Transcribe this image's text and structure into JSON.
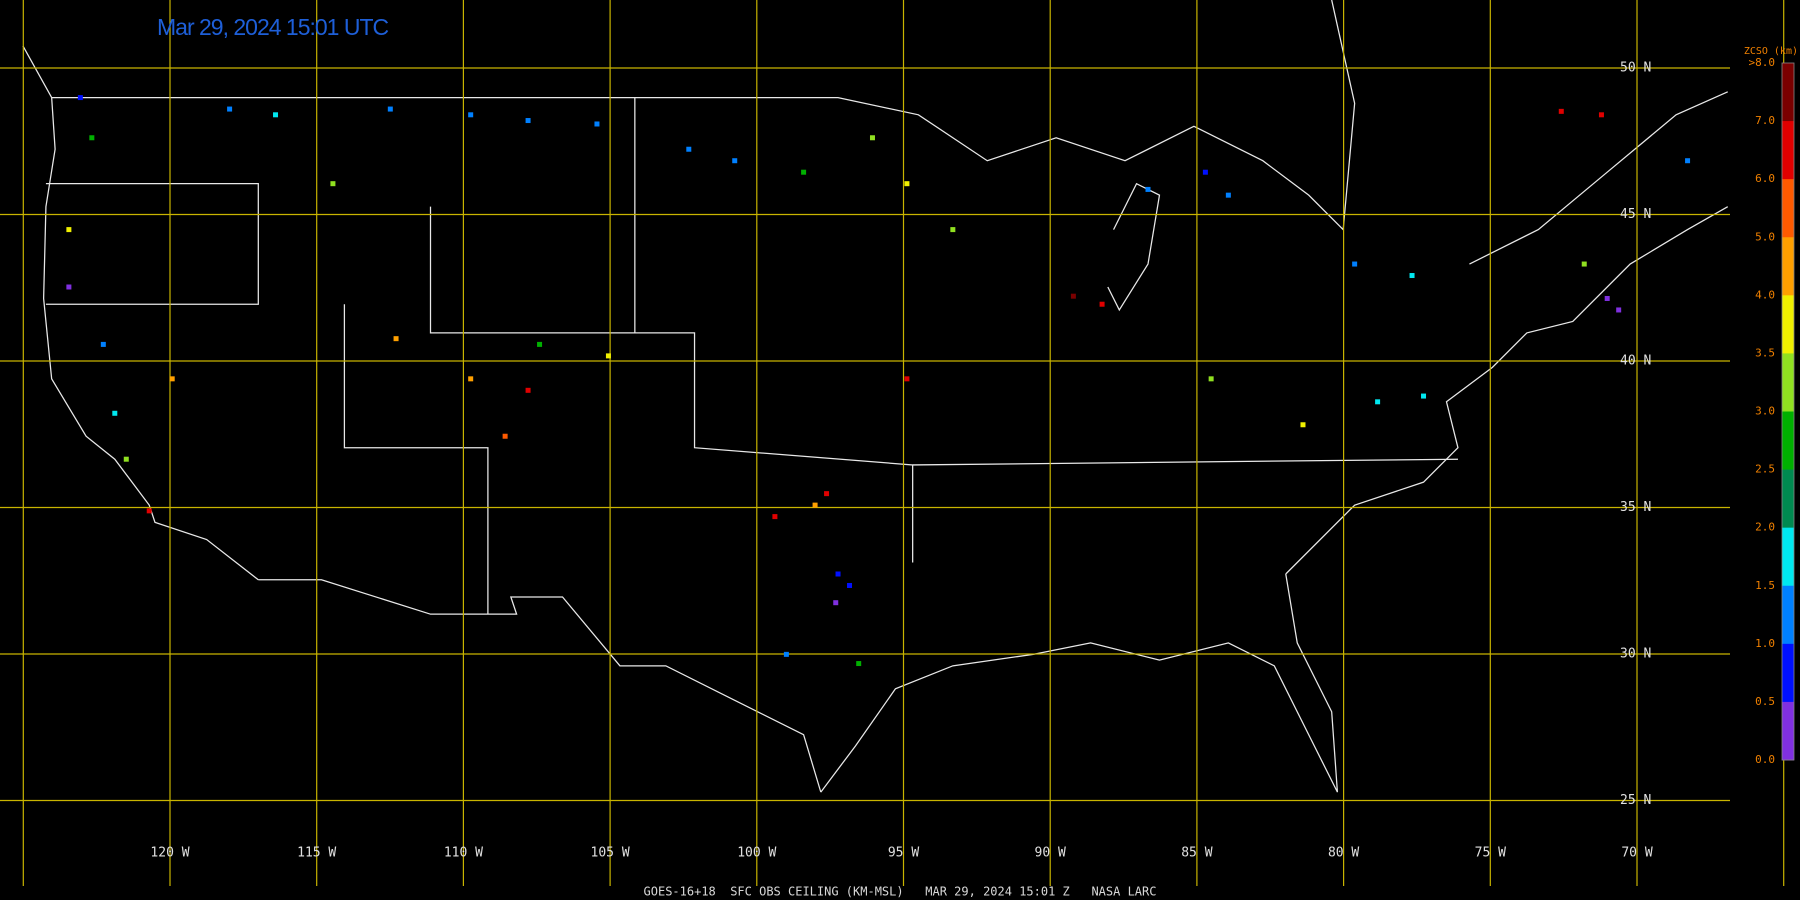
{
  "title": "Mar 29, 2024 15:01 UTC",
  "footer": "GOES-16+18  SFC OBS CEILING (KM-MSL)   MAR 29, 2024 15:01 Z   NASA LARC",
  "latitude_labels": [
    "50 N",
    "45 N",
    "40 N",
    "35 N",
    "30 N",
    "25 N"
  ],
  "longitude_labels": [
    "120 W",
    "115 W",
    "110 W",
    "105 W",
    "100 W",
    "95 W",
    "90 W",
    "85 W",
    "80 W",
    "75 W",
    "70 W"
  ],
  "legend": {
    "title": "ZCSO (km)",
    "labels": [
      ">8.0",
      "7.0",
      "6.0",
      "5.0",
      "4.0",
      "3.5",
      "3.0",
      "2.5",
      "2.0",
      "1.5",
      "1.0",
      "0.5",
      "0.0"
    ]
  }
}
